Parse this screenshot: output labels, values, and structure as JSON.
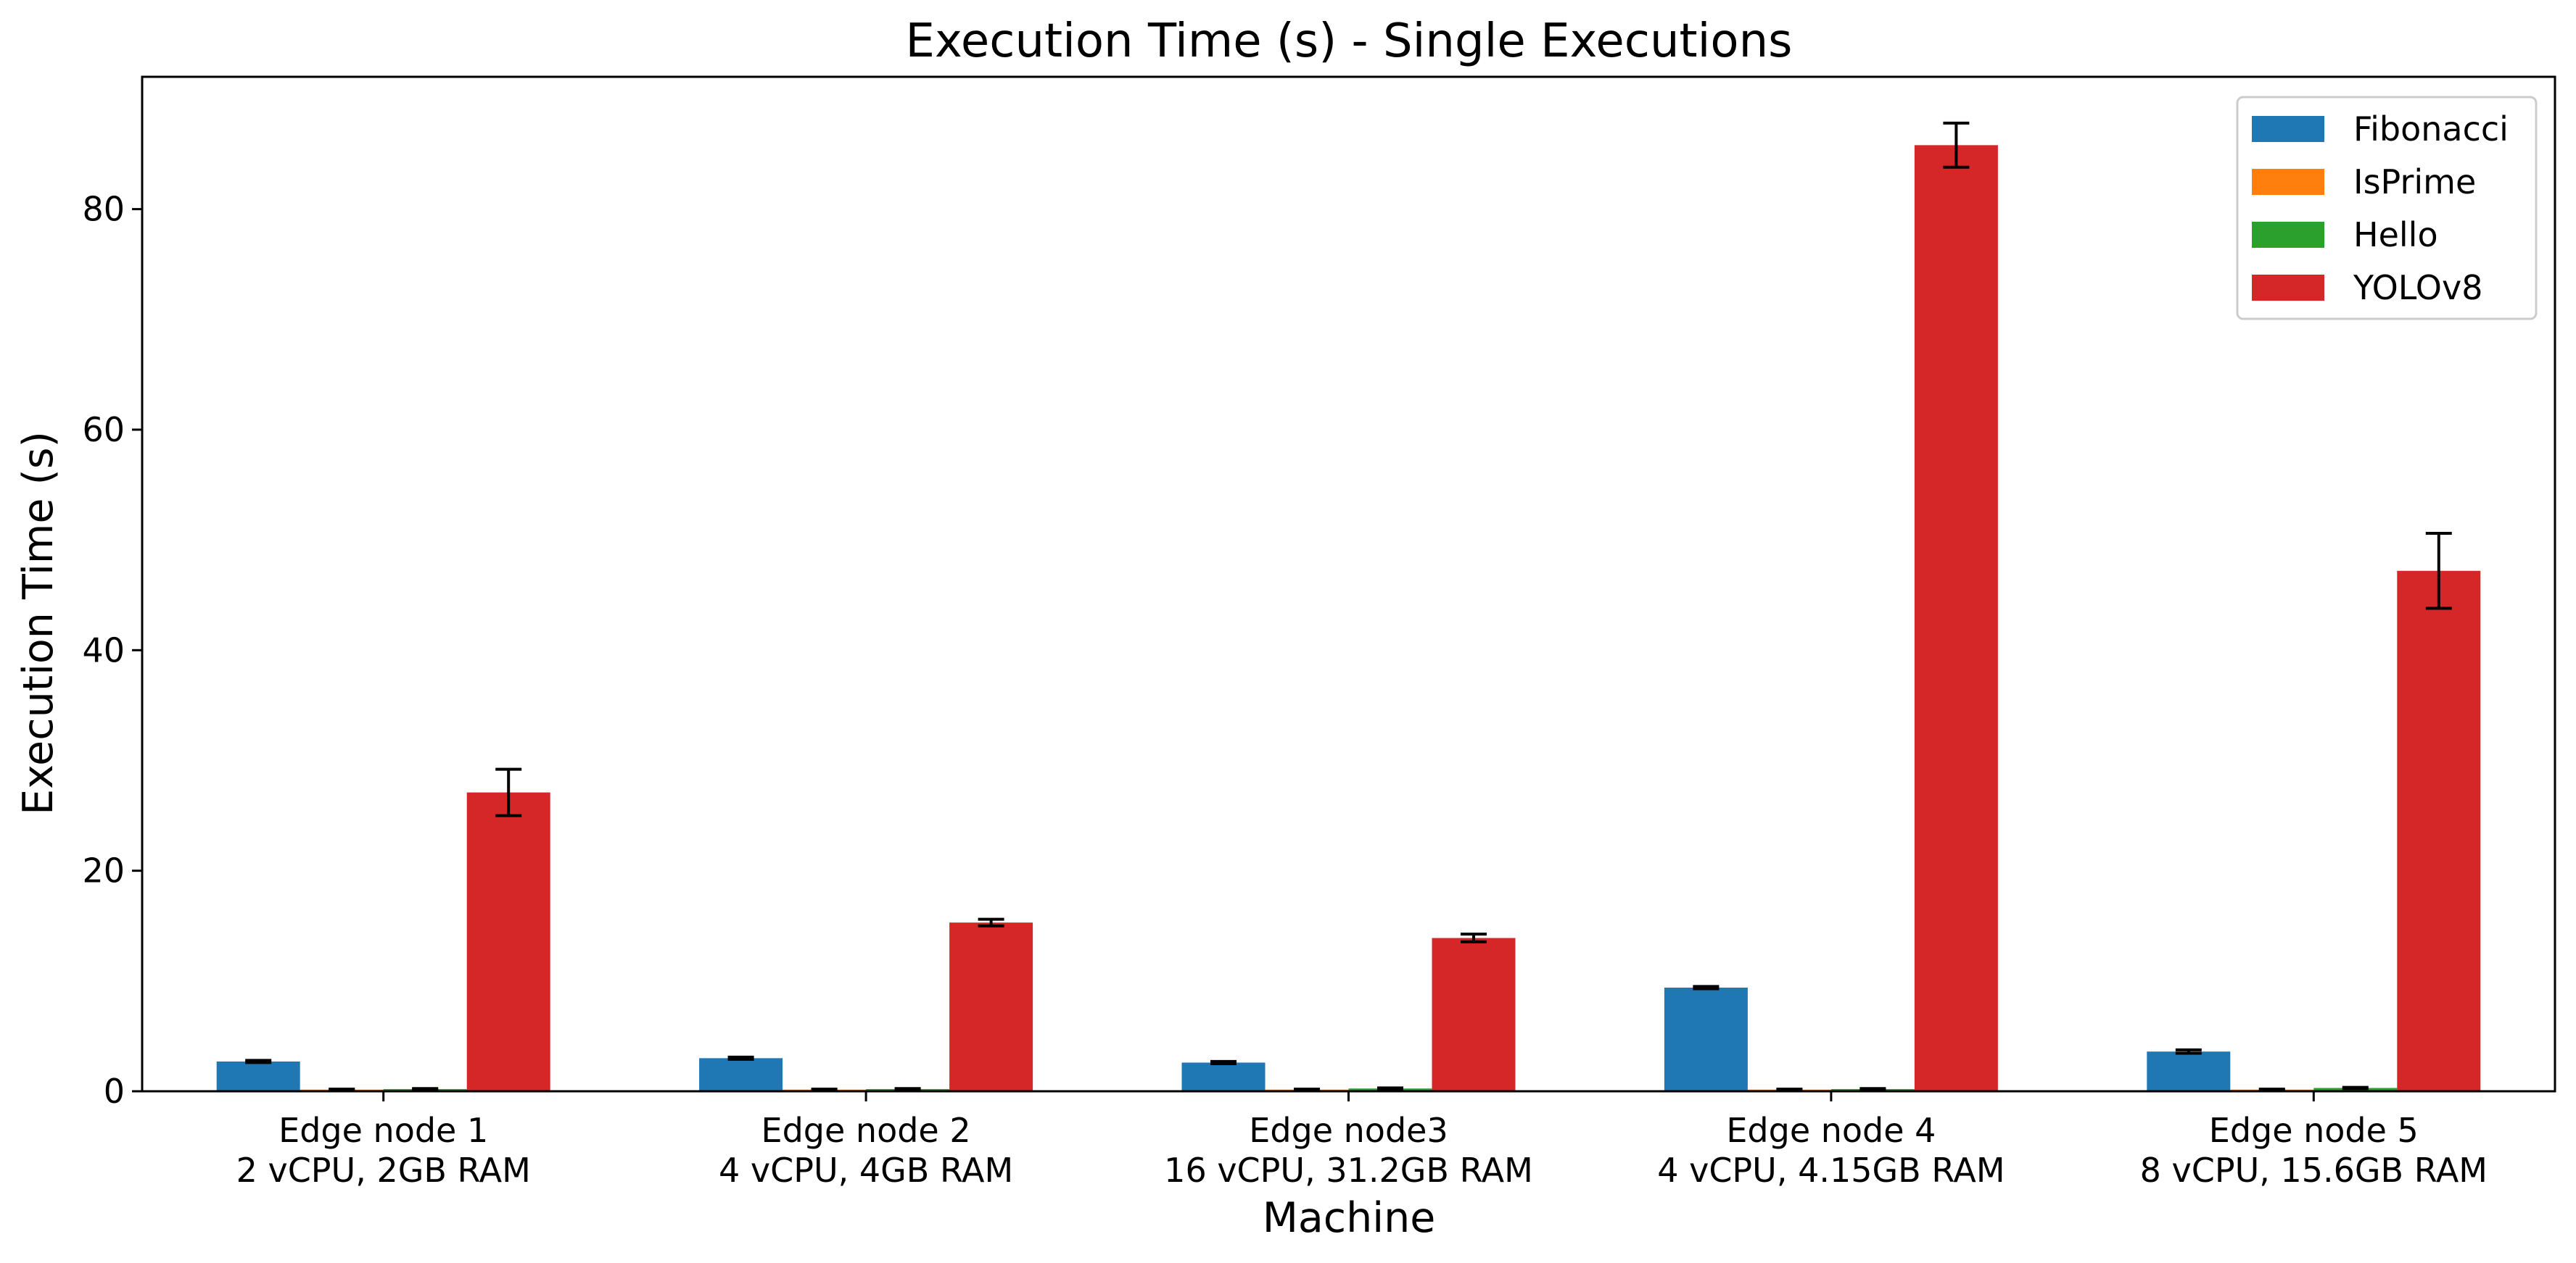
{
  "chart_data": {
    "type": "bar",
    "title": "Execution Time (s) - Single Executions",
    "xlabel": "Machine",
    "ylabel": "Execution Time (s)",
    "ylim": [
      0,
      92
    ],
    "yticks": [
      0,
      20,
      40,
      60,
      80
    ],
    "grid": false,
    "legend_position": "top-right",
    "categories": [
      [
        "Edge node 1",
        "2 vCPU, 2GB RAM"
      ],
      [
        "Edge node 2",
        "4 vCPU, 4GB RAM"
      ],
      [
        "Edge node3",
        "16 vCPU, 31.2GB RAM"
      ],
      [
        "Edge node 4",
        "4 vCPU, 4.15GB RAM"
      ],
      [
        "Edge node 5",
        "8 vCPU, 15.6GB RAM"
      ]
    ],
    "series": [
      {
        "name": "Fibonacci",
        "color": "#1f77b4",
        "values": [
          2.7,
          3.0,
          2.6,
          9.4,
          3.6
        ],
        "errors": [
          0.1,
          0.1,
          0.1,
          0.1,
          0.15
        ]
      },
      {
        "name": "IsPrime",
        "color": "#ff7f0e",
        "values": [
          0.15,
          0.15,
          0.15,
          0.15,
          0.15
        ],
        "errors": [
          0.05,
          0.05,
          0.05,
          0.05,
          0.05
        ]
      },
      {
        "name": "Hello",
        "color": "#2ca02c",
        "values": [
          0.2,
          0.2,
          0.25,
          0.2,
          0.3
        ],
        "errors": [
          0.05,
          0.05,
          0.05,
          0.05,
          0.05
        ]
      },
      {
        "name": "YOLOv8",
        "color": "#d62728",
        "values": [
          27.1,
          15.3,
          13.9,
          85.8,
          47.2
        ],
        "errors": [
          2.1,
          0.3,
          0.35,
          2.0,
          3.4
        ]
      }
    ]
  }
}
